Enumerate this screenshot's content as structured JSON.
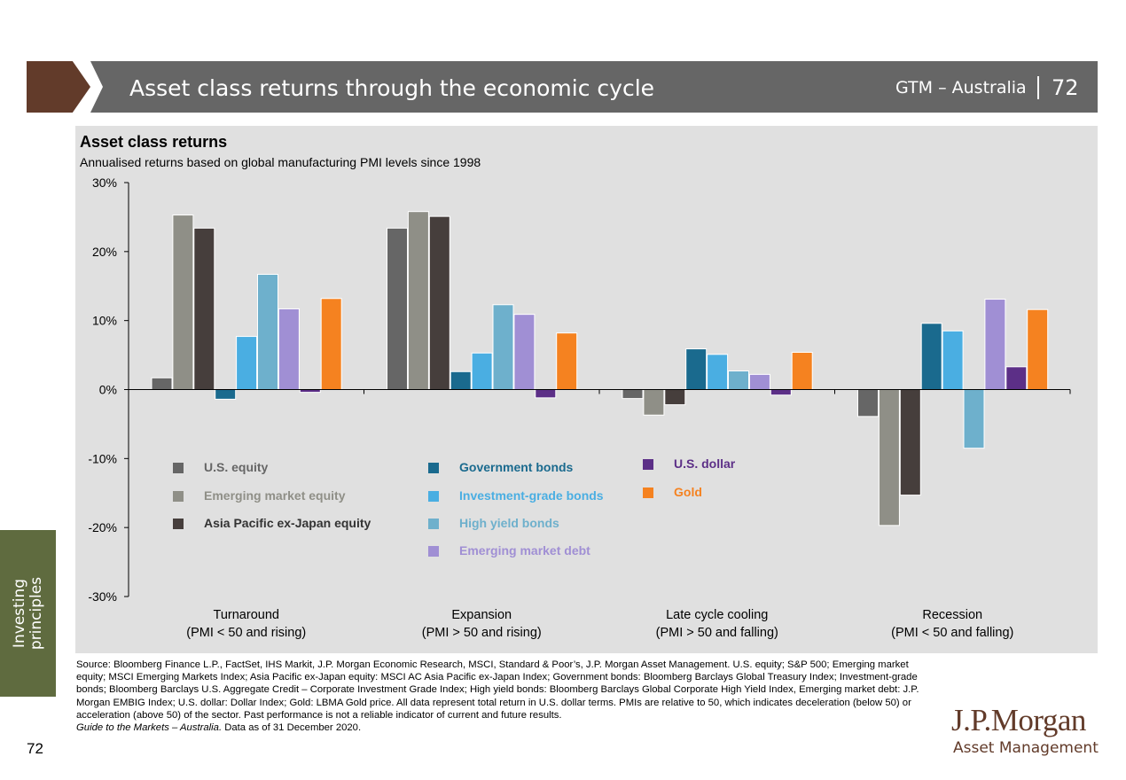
{
  "header": {
    "title": "Asset class returns through the economic cycle",
    "section": "GTM – Australia",
    "page": "72"
  },
  "sidebar": {
    "label": "Investing principles"
  },
  "footer": {
    "page_number": "72",
    "source": "Source: Bloomberg Finance L.P., FactSet, IHS Markit, J.P. Morgan Economic Research, MSCI, Standard & Poor’s, J.P. Morgan Asset Management. U.S. equity; S&P 500; Emerging market equity; MSCI Emerging Markets Index; Asia Pacific ex-Japan equity: MSCI AC Asia Pacific ex-Japan Index; Government bonds: Bloomberg Barclays Global Treasury Index; Investment-grade bonds; Bloomberg Barclays U.S. Aggregate Credit – Corporate Investment Grade Index; High yield bonds: Bloomberg Barclays Global Corporate High Yield Index, Emerging market debt: J.P. Morgan EMBIG Index; U.S. dollar: Dollar Index; Gold: LBMA Gold price. All data represent total return in U.S. dollar terms. PMIs are relative to 50, which indicates deceleration (below 50) or acceleration (above 50) of the sector. Past performance is not a reliable indicator of current and future results.",
    "guide": "Guide to the Markets – Australia.",
    "asof": " Data as of 31 December 2020."
  },
  "logo": {
    "line1": "J.P.Morgan",
    "line2": "Asset Management"
  },
  "chart_data": {
    "type": "bar",
    "title": "Asset class returns",
    "subtitle": "Annualised returns based on global manufacturing PMI levels since 1998",
    "ylim": [
      -30,
      30
    ],
    "yticks": [
      "-30%",
      "-20%",
      "-10%",
      "0%",
      "10%",
      "20%",
      "30%"
    ],
    "categories": [
      [
        "Turnaround",
        "(PMI < 50 and rising)"
      ],
      [
        "Expansion",
        "(PMI > 50 and rising)"
      ],
      [
        "Late cycle cooling",
        "(PMI > 50 and falling)"
      ],
      [
        "Recession",
        "(PMI < 50 and falling)"
      ]
    ],
    "series": [
      {
        "name": "U.S. equity",
        "color": "#666666",
        "values": [
          1.7,
          23.4,
          -1.3,
          -3.9
        ]
      },
      {
        "name": "Emerging market equity",
        "color": "#8f8f87",
        "values": [
          25.3,
          25.8,
          -3.7,
          -19.7
        ]
      },
      {
        "name": "Asia Pacific ex-Japan equity",
        "color": "#463e3c",
        "values": [
          23.4,
          25.1,
          -2.2,
          -15.3
        ]
      },
      {
        "name": "Government bonds",
        "color": "#1a6a8e",
        "values": [
          -1.4,
          2.6,
          5.9,
          9.6
        ]
      },
      {
        "name": "Investment-grade bonds",
        "color": "#4aaee2",
        "values": [
          7.7,
          5.3,
          5.1,
          8.5
        ]
      },
      {
        "name": "High yield bonds",
        "color": "#6eb0cc",
        "values": [
          16.7,
          12.3,
          2.7,
          -8.5
        ]
      },
      {
        "name": "Emerging market debt",
        "color": "#a08fd4",
        "values": [
          11.7,
          10.9,
          2.2,
          13.1
        ]
      },
      {
        "name": "U.S. dollar",
        "color": "#5c2f87",
        "values": [
          -0.4,
          -1.2,
          -0.8,
          3.3
        ]
      },
      {
        "name": "Gold",
        "color": "#f58220",
        "values": [
          13.2,
          8.2,
          5.4,
          11.6
        ]
      }
    ],
    "legend": "inside-lower-left"
  }
}
